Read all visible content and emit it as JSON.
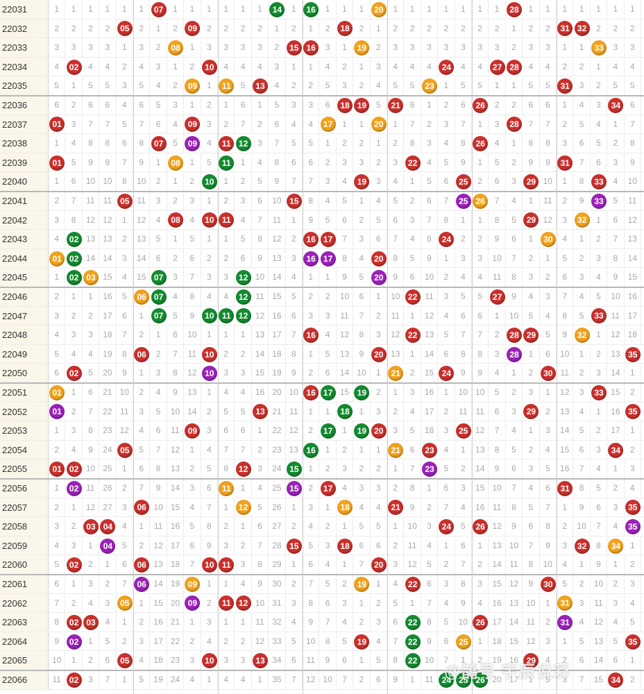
{
  "chart_data": {
    "type": "table",
    "columns": 35,
    "rows": [
      {
        "issue": "22031",
        "balls": [
          {
            "n": "07",
            "c": "r"
          },
          {
            "n": "14",
            "c": "g"
          },
          {
            "n": "16",
            "c": "g"
          },
          {
            "n": "20",
            "c": "o"
          },
          {
            "n": "28",
            "c": "r"
          }
        ]
      },
      {
        "issue": "22032",
        "balls": [
          {
            "n": "05",
            "c": "r"
          },
          {
            "n": "09",
            "c": "r"
          },
          {
            "n": "18",
            "c": "r"
          },
          {
            "n": "31",
            "c": "r"
          },
          {
            "n": "32",
            "c": "r"
          }
        ]
      },
      {
        "issue": "22033",
        "balls": [
          {
            "n": "08",
            "c": "o"
          },
          {
            "n": "15",
            "c": "r"
          },
          {
            "n": "16",
            "c": "r"
          },
          {
            "n": "19",
            "c": "o"
          },
          {
            "n": "33",
            "c": "o"
          }
        ]
      },
      {
        "issue": "22034",
        "balls": [
          {
            "n": "02",
            "c": "r"
          },
          {
            "n": "10",
            "c": "r"
          },
          {
            "n": "24",
            "c": "r"
          },
          {
            "n": "27",
            "c": "r"
          },
          {
            "n": "28",
            "c": "r"
          }
        ]
      },
      {
        "issue": "22035",
        "balls": [
          {
            "n": "09",
            "c": "o"
          },
          {
            "n": "11",
            "c": "o"
          },
          {
            "n": "13",
            "c": "r"
          },
          {
            "n": "23",
            "c": "o"
          },
          {
            "n": "31",
            "c": "r"
          }
        ]
      },
      {
        "issue": "22036",
        "balls": [
          {
            "n": "18",
            "c": "r"
          },
          {
            "n": "19",
            "c": "r"
          },
          {
            "n": "21",
            "c": "r"
          },
          {
            "n": "26",
            "c": "r"
          },
          {
            "n": "34",
            "c": "r"
          }
        ]
      },
      {
        "issue": "22037",
        "balls": [
          {
            "n": "01",
            "c": "r"
          },
          {
            "n": "09",
            "c": "r"
          },
          {
            "n": "17",
            "c": "o"
          },
          {
            "n": "20",
            "c": "o"
          },
          {
            "n": "28",
            "c": "r"
          }
        ]
      },
      {
        "issue": "22038",
        "balls": [
          {
            "n": "07",
            "c": "r"
          },
          {
            "n": "09",
            "c": "p"
          },
          {
            "n": "11",
            "c": "r"
          },
          {
            "n": "12",
            "c": "g"
          },
          {
            "n": "26",
            "c": "r"
          }
        ]
      },
      {
        "issue": "22039",
        "balls": [
          {
            "n": "01",
            "c": "r"
          },
          {
            "n": "08",
            "c": "o"
          },
          {
            "n": "11",
            "c": "g"
          },
          {
            "n": "22",
            "c": "r"
          },
          {
            "n": "31",
            "c": "r"
          }
        ]
      },
      {
        "issue": "22040",
        "balls": [
          {
            "n": "10",
            "c": "g"
          },
          {
            "n": "19",
            "c": "r"
          },
          {
            "n": "25",
            "c": "r"
          },
          {
            "n": "29",
            "c": "r"
          },
          {
            "n": "33",
            "c": "r"
          }
        ]
      },
      {
        "issue": "22041",
        "balls": [
          {
            "n": "05",
            "c": "r"
          },
          {
            "n": "15",
            "c": "r"
          },
          {
            "n": "25",
            "c": "p"
          },
          {
            "n": "26",
            "c": "o"
          },
          {
            "n": "33",
            "c": "p"
          }
        ]
      },
      {
        "issue": "22042",
        "balls": [
          {
            "n": "08",
            "c": "r"
          },
          {
            "n": "10",
            "c": "r"
          },
          {
            "n": "11",
            "c": "r"
          },
          {
            "n": "29",
            "c": "r"
          },
          {
            "n": "32",
            "c": "o"
          }
        ]
      },
      {
        "issue": "22043",
        "balls": [
          {
            "n": "02",
            "c": "g"
          },
          {
            "n": "16",
            "c": "r"
          },
          {
            "n": "17",
            "c": "r"
          },
          {
            "n": "24",
            "c": "r"
          },
          {
            "n": "30",
            "c": "o"
          }
        ]
      },
      {
        "issue": "22044",
        "balls": [
          {
            "n": "01",
            "c": "o"
          },
          {
            "n": "02",
            "c": "g"
          },
          {
            "n": "16",
            "c": "p"
          },
          {
            "n": "17",
            "c": "p"
          },
          {
            "n": "20",
            "c": "r"
          }
        ]
      },
      {
        "issue": "22045",
        "balls": [
          {
            "n": "02",
            "c": "g"
          },
          {
            "n": "03",
            "c": "o"
          },
          {
            "n": "07",
            "c": "g"
          },
          {
            "n": "12",
            "c": "g"
          },
          {
            "n": "20",
            "c": "p"
          }
        ]
      },
      {
        "issue": "22046",
        "balls": [
          {
            "n": "06",
            "c": "o"
          },
          {
            "n": "07",
            "c": "g"
          },
          {
            "n": "12",
            "c": "g"
          },
          {
            "n": "22",
            "c": "r"
          },
          {
            "n": "27",
            "c": "r"
          }
        ]
      },
      {
        "issue": "22047",
        "balls": [
          {
            "n": "07",
            "c": "g"
          },
          {
            "n": "10",
            "c": "g"
          },
          {
            "n": "11",
            "c": "g"
          },
          {
            "n": "12",
            "c": "g"
          },
          {
            "n": "33",
            "c": "r"
          }
        ]
      },
      {
        "issue": "22048",
        "balls": [
          {
            "n": "16",
            "c": "r"
          },
          {
            "n": "22",
            "c": "r"
          },
          {
            "n": "28",
            "c": "r"
          },
          {
            "n": "29",
            "c": "r"
          },
          {
            "n": "32",
            "c": "o"
          }
        ]
      },
      {
        "issue": "22049",
        "balls": [
          {
            "n": "06",
            "c": "r"
          },
          {
            "n": "10",
            "c": "r"
          },
          {
            "n": "20",
            "c": "r"
          },
          {
            "n": "28",
            "c": "p"
          },
          {
            "n": "35",
            "c": "r"
          }
        ]
      },
      {
        "issue": "22050",
        "balls": [
          {
            "n": "02",
            "c": "r"
          },
          {
            "n": "10",
            "c": "p"
          },
          {
            "n": "21",
            "c": "o"
          },
          {
            "n": "24",
            "c": "r"
          },
          {
            "n": "30",
            "c": "r"
          }
        ]
      },
      {
        "issue": "22051",
        "balls": [
          {
            "n": "01",
            "c": "o"
          },
          {
            "n": "16",
            "c": "r"
          },
          {
            "n": "17",
            "c": "g"
          },
          {
            "n": "19",
            "c": "g"
          },
          {
            "n": "33",
            "c": "r"
          }
        ]
      },
      {
        "issue": "22052",
        "balls": [
          {
            "n": "01",
            "c": "p"
          },
          {
            "n": "13",
            "c": "r"
          },
          {
            "n": "18",
            "c": "g"
          },
          {
            "n": "29",
            "c": "r"
          },
          {
            "n": "35",
            "c": "r"
          }
        ]
      },
      {
        "issue": "22053",
        "balls": [
          {
            "n": "09",
            "c": "r"
          },
          {
            "n": "17",
            "c": "g"
          },
          {
            "n": "19",
            "c": "g"
          },
          {
            "n": "20",
            "c": "r"
          },
          {
            "n": "25",
            "c": "r"
          }
        ]
      },
      {
        "issue": "22054",
        "balls": [
          {
            "n": "05",
            "c": "r"
          },
          {
            "n": "16",
            "c": "g"
          },
          {
            "n": "21",
            "c": "o"
          },
          {
            "n": "23",
            "c": "r"
          },
          {
            "n": "34",
            "c": "r"
          }
        ]
      },
      {
        "issue": "22055",
        "balls": [
          {
            "n": "01",
            "c": "r"
          },
          {
            "n": "02",
            "c": "r"
          },
          {
            "n": "12",
            "c": "r"
          },
          {
            "n": "15",
            "c": "g"
          },
          {
            "n": "23",
            "c": "p"
          }
        ]
      },
      {
        "issue": "22056",
        "balls": [
          {
            "n": "02",
            "c": "p"
          },
          {
            "n": "11",
            "c": "o"
          },
          {
            "n": "15",
            "c": "p"
          },
          {
            "n": "17",
            "c": "r"
          },
          {
            "n": "31",
            "c": "r"
          }
        ]
      },
      {
        "issue": "22057",
        "balls": [
          {
            "n": "06",
            "c": "r"
          },
          {
            "n": "12",
            "c": "o"
          },
          {
            "n": "18",
            "c": "o"
          },
          {
            "n": "21",
            "c": "r"
          },
          {
            "n": "35",
            "c": "r"
          }
        ]
      },
      {
        "issue": "22058",
        "balls": [
          {
            "n": "03",
            "c": "r"
          },
          {
            "n": "04",
            "c": "r"
          },
          {
            "n": "24",
            "c": "r"
          },
          {
            "n": "26",
            "c": "r"
          },
          {
            "n": "35",
            "c": "p"
          }
        ]
      },
      {
        "issue": "22059",
        "balls": [
          {
            "n": "04",
            "c": "p"
          },
          {
            "n": "15",
            "c": "r"
          },
          {
            "n": "18",
            "c": "r"
          },
          {
            "n": "32",
            "c": "r"
          },
          {
            "n": "34",
            "c": "o"
          }
        ]
      },
      {
        "issue": "22060",
        "balls": [
          {
            "n": "02",
            "c": "r"
          },
          {
            "n": "06",
            "c": "r"
          },
          {
            "n": "10",
            "c": "r"
          },
          {
            "n": "11",
            "c": "r"
          },
          {
            "n": "20",
            "c": "r"
          }
        ]
      },
      {
        "issue": "22061",
        "balls": [
          {
            "n": "06",
            "c": "p"
          },
          {
            "n": "09",
            "c": "o"
          },
          {
            "n": "19",
            "c": "o"
          },
          {
            "n": "22",
            "c": "r"
          },
          {
            "n": "30",
            "c": "r"
          }
        ]
      },
      {
        "issue": "22062",
        "balls": [
          {
            "n": "05",
            "c": "o"
          },
          {
            "n": "09",
            "c": "p"
          },
          {
            "n": "11",
            "c": "r"
          },
          {
            "n": "12",
            "c": "r"
          },
          {
            "n": "31",
            "c": "o"
          }
        ]
      },
      {
        "issue": "22063",
        "balls": [
          {
            "n": "02",
            "c": "r"
          },
          {
            "n": "03",
            "c": "r"
          },
          {
            "n": "22",
            "c": "g"
          },
          {
            "n": "26",
            "c": "r"
          },
          {
            "n": "31",
            "c": "p"
          }
        ]
      },
      {
        "issue": "22064",
        "balls": [
          {
            "n": "02",
            "c": "p"
          },
          {
            "n": "19",
            "c": "r"
          },
          {
            "n": "22",
            "c": "g"
          },
          {
            "n": "25",
            "c": "o"
          },
          {
            "n": "35",
            "c": "r"
          }
        ]
      },
      {
        "issue": "22065",
        "balls": [
          {
            "n": "05",
            "c": "r"
          },
          {
            "n": "10",
            "c": "r"
          },
          {
            "n": "13",
            "c": "r"
          },
          {
            "n": "22",
            "c": "g"
          },
          {
            "n": "29",
            "c": "r"
          }
        ]
      },
      {
        "issue": "22066",
        "balls": [
          {
            "n": "02",
            "c": "r"
          },
          {
            "n": "24",
            "c": "g"
          },
          {
            "n": "25",
            "c": "g"
          },
          {
            "n": "26",
            "c": "g"
          },
          {
            "n": "34",
            "c": "r"
          }
        ]
      }
    ],
    "watermark": "@鹊号 宇辰说彩"
  }
}
